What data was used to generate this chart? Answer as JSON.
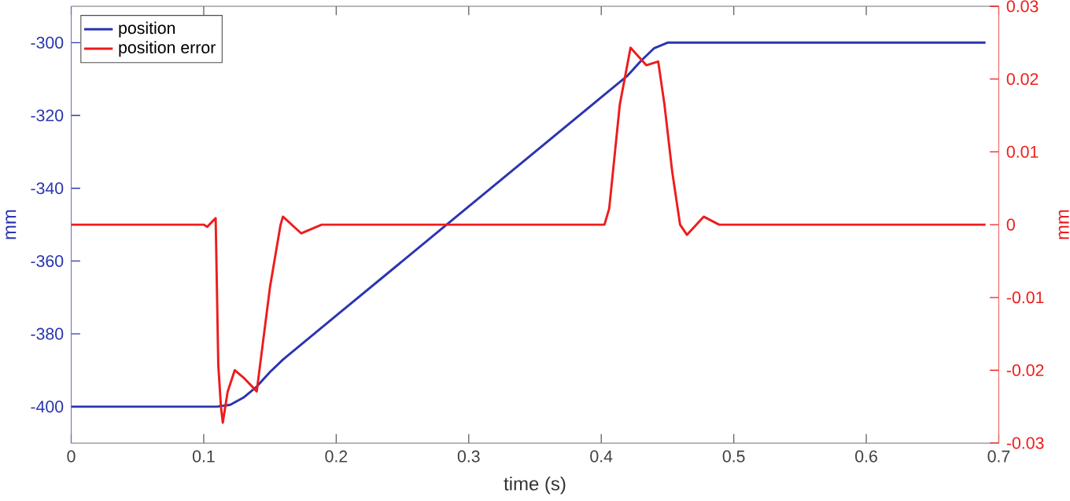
{
  "chart_data": {
    "type": "line",
    "xlabel": "time (s)",
    "ylabel": "mm",
    "y2label": "mm",
    "xlim": [
      0,
      0.7
    ],
    "xticks": [
      0,
      0.1,
      0.2,
      0.3,
      0.4,
      0.5,
      0.6,
      0.7
    ],
    "ylim": [
      -410,
      -290
    ],
    "yticks": [
      -400,
      -380,
      -360,
      -340,
      -320,
      -300
    ],
    "y2lim": [
      -0.03,
      0.03
    ],
    "y2ticks": [
      -0.03,
      -0.02,
      -0.01,
      0,
      0.01,
      0.02,
      0.03
    ],
    "legend": "top left",
    "grid": false,
    "marker": "none",
    "line_style": "solid",
    "series": [
      {
        "name": "position",
        "color": "#2a35b0",
        "axis": "y",
        "x": [
          0,
          0.11,
          0.12,
          0.13,
          0.14,
          0.15,
          0.16,
          0.2,
          0.3,
          0.4,
          0.42,
          0.43,
          0.44,
          0.45,
          0.46,
          0.69
        ],
        "values": [
          -400,
          -400,
          -399.5,
          -397.5,
          -394.5,
          -390.5,
          -387,
          -375,
          -345,
          -315,
          -309,
          -305,
          -301.5,
          -300,
          -300,
          -300
        ]
      },
      {
        "name": "position error",
        "color": "#ee1c1c",
        "axis": "y2",
        "x": [
          0,
          0.1,
          0.1026,
          0.109,
          0.111,
          0.113,
          0.1144,
          0.118,
          0.1234,
          0.13,
          0.14,
          0.15,
          0.158,
          0.1598,
          0.1736,
          0.189,
          0.4,
          0.4024,
          0.406,
          0.414,
          0.4221,
          0.434,
          0.443,
          0.4477,
          0.4536,
          0.4595,
          0.4647,
          0.4773,
          0.489,
          0.69
        ],
        "values": [
          0,
          0,
          -0.0003,
          0.0009,
          -0.0193,
          -0.025,
          -0.0272,
          -0.023,
          -0.02,
          -0.021,
          -0.0229,
          -0.0086,
          0,
          0.0011,
          -0.0012,
          0,
          0,
          0,
          0.0022,
          0.0165,
          0.0243,
          0.0219,
          0.0224,
          0.0165,
          0.0072,
          0,
          -0.0014,
          0.0011,
          0,
          0
        ]
      }
    ]
  }
}
